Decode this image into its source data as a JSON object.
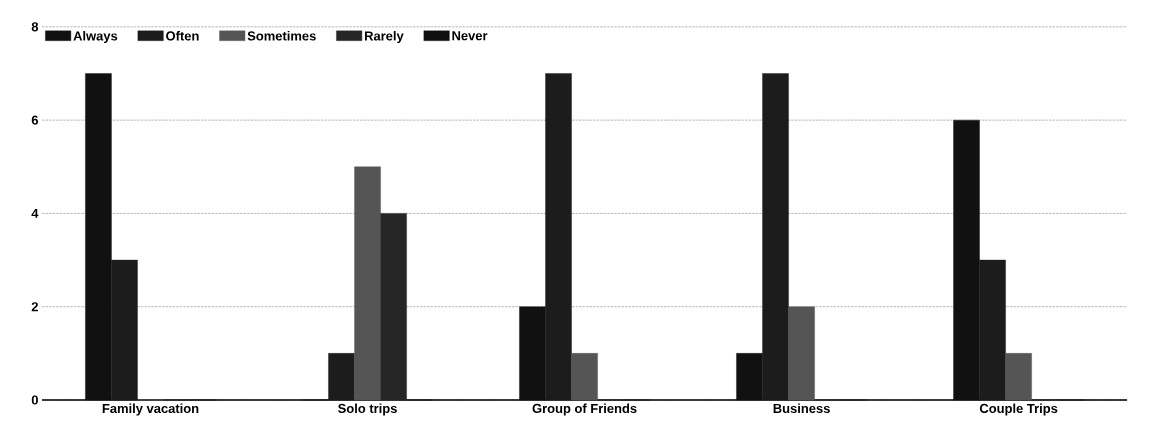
{
  "chart_data": {
    "type": "bar",
    "categories": [
      "Family vacation",
      "Solo trips",
      "Group of Friends",
      "Business",
      "Couple Trips"
    ],
    "series": [
      {
        "name": "Always",
        "color": "#111111",
        "values": [
          7,
          0,
          2,
          1,
          6
        ]
      },
      {
        "name": "Often",
        "color": "#1c1c1c",
        "values": [
          3,
          1,
          7,
          7,
          3
        ]
      },
      {
        "name": "Sometimes",
        "color": "#555555",
        "values": [
          0,
          5,
          1,
          2,
          1
        ]
      },
      {
        "name": "Rarely",
        "color": "#262626",
        "values": [
          0,
          4,
          0,
          0,
          0
        ]
      },
      {
        "name": "Never",
        "color": "#101010",
        "values": [
          0,
          0,
          0,
          0,
          0
        ]
      }
    ],
    "ylim": [
      0,
      8
    ],
    "yticks": [
      0,
      2,
      4,
      6,
      8
    ],
    "grid": "y",
    "legend": "top left"
  }
}
